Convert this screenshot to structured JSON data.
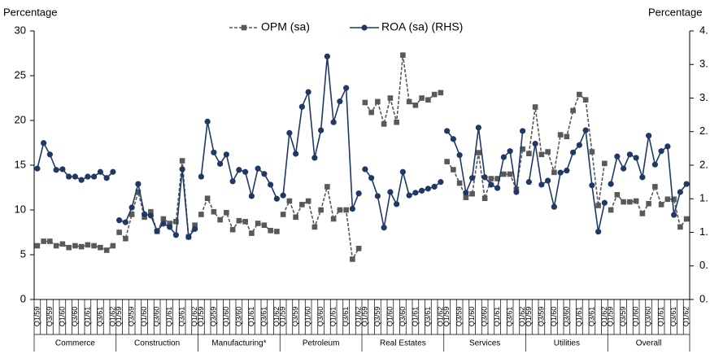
{
  "chart_data": {
    "type": "line",
    "y_label": "Percentage",
    "y2_label": "Percentage",
    "group_labels": [
      "Commerce",
      "Construction",
      "Manufacturing*",
      "Petroleum",
      "Real Estates",
      "Services",
      "Utilities",
      "Overall"
    ],
    "categories": [
      "Q1/59",
      null,
      "Q3/59",
      null,
      "Q1/60",
      null,
      "Q3/60",
      null,
      "Q1/61",
      null,
      "Q3/61",
      null,
      "Q1/62",
      "Q1/59",
      null,
      "Q3/59",
      null,
      "Q1/60",
      null,
      "Q3/60",
      null,
      "Q1/61",
      null,
      "Q3/61",
      null,
      "Q1/62",
      "Q1/59",
      null,
      "Q3/59",
      null,
      "Q1/60",
      null,
      "Q3/60",
      null,
      "Q1/61",
      null,
      "Q3/61",
      null,
      "Q1/62",
      "Q1/59",
      null,
      "Q3/59",
      null,
      "Q1/60",
      null,
      "Q3/60",
      null,
      "Q1/61",
      null,
      "Q3/61",
      null,
      "Q1/62",
      "Q1/59",
      null,
      "Q3/59",
      null,
      "Q1/60",
      null,
      "Q3/60",
      null,
      "Q1/61",
      null,
      "Q3/61",
      null,
      "Q1/62",
      "Q1/59",
      null,
      "Q3/59",
      null,
      "Q1/60",
      null,
      "Q3/60",
      null,
      "Q1/61",
      null,
      "Q3/61",
      null,
      "Q1/62",
      "Q1/59",
      null,
      "Q3/59",
      null,
      "Q1/60",
      null,
      "Q3/60",
      null,
      "Q1/61",
      null,
      "Q3/61",
      null,
      "Q1/62",
      "Q1/59",
      null,
      "Q3/59",
      null,
      "Q1/60",
      null,
      "Q3/60",
      null,
      "Q1/61",
      null,
      "Q3/61",
      null,
      "Q1/62"
    ],
    "series": [
      {
        "name": "OPM (sa)",
        "color": "#595959",
        "values": [
          6.0,
          6.5,
          6.5,
          6.0,
          6.2,
          5.8,
          6.0,
          5.9,
          6.1,
          6.0,
          5.8,
          5.5,
          6.0,
          7.5,
          6.8,
          9.5,
          12.0,
          9.2,
          9.8,
          7.6,
          9.0,
          8.5,
          8.7,
          15.5,
          7.0,
          8.3,
          9.5,
          11.3,
          9.8,
          8.9,
          9.7,
          7.8,
          8.8,
          8.7,
          7.4,
          8.5,
          8.3,
          7.7,
          7.6,
          9.5,
          11.0,
          9.2,
          10.6,
          11.0,
          8.1,
          10.0,
          12.6,
          9.0,
          10.0,
          10.0,
          4.5,
          5.7,
          22.0,
          20.9,
          22.1,
          19.6,
          22.5,
          19.8,
          27.3,
          22.1,
          21.7,
          22.5,
          22.3,
          22.9,
          23.1,
          15.4,
          14.5,
          13.0,
          11.4,
          11.8,
          16.4,
          11.3,
          13.5,
          13.5,
          14.0,
          14.0,
          12.3,
          16.8,
          16.3,
          21.5,
          16.2,
          16.5,
          14.2,
          18.4,
          18.2,
          21.1,
          22.9,
          22.3,
          16.5,
          10.5,
          15.2,
          10.0,
          11.7,
          10.9,
          10.9,
          11.0,
          9.6,
          10.7,
          12.6,
          10.6,
          11.2,
          11.2,
          8.1,
          9.0
        ]
      },
      {
        "name": "ROA (sa) (RHS)",
        "color": "#1f3864",
        "axis": "y2",
        "values": [
          1.95,
          2.33,
          2.16,
          1.93,
          1.94,
          1.83,
          1.83,
          1.78,
          1.83,
          1.83,
          1.9,
          1.81,
          1.9,
          1.18,
          1.15,
          1.37,
          1.72,
          1.27,
          1.25,
          1.02,
          1.13,
          1.08,
          0.96,
          1.94,
          0.93,
          1.05,
          1.83,
          2.65,
          2.19,
          2.02,
          2.16,
          1.76,
          1.93,
          1.9,
          1.54,
          1.95,
          1.87,
          1.71,
          1.5,
          1.55,
          2.48,
          2.17,
          2.87,
          3.09,
          2.11,
          2.52,
          3.62,
          2.64,
          2.95,
          3.15,
          1.35,
          1.58,
          1.94,
          1.81,
          1.54,
          1.07,
          1.6,
          1.42,
          1.9,
          1.55,
          1.59,
          1.62,
          1.65,
          1.68,
          1.75,
          2.51,
          2.39,
          2.15,
          1.59,
          1.81,
          2.56,
          1.82,
          1.71,
          1.66,
          2.12,
          2.21,
          1.6,
          2.51,
          1.75,
          2.32,
          1.71,
          1.77,
          1.38,
          1.89,
          1.92,
          2.19,
          2.3,
          2.52,
          1.7,
          1.01,
          1.44,
          1.72,
          2.13,
          1.95,
          2.16,
          2.11,
          1.82,
          2.44,
          2.01,
          2.21,
          2.28,
          1.26,
          1.6,
          1.72
        ]
      }
    ],
    "ylim": [
      0,
      30
    ],
    "yticks": [
      0,
      5,
      10,
      15,
      20,
      25,
      30
    ],
    "y2lim": [
      0,
      4
    ],
    "y2ticks": [
      {
        "value": 0,
        "label": "0."
      },
      {
        "value": 0.5,
        "label": "0."
      },
      {
        "value": 1,
        "label": "1."
      },
      {
        "value": 1.5,
        "label": "1."
      },
      {
        "value": 2,
        "label": "2."
      },
      {
        "value": 2.5,
        "label": "2."
      },
      {
        "value": 3,
        "label": "3."
      },
      {
        "value": 3.5,
        "label": "3."
      },
      {
        "value": 4,
        "label": "4."
      }
    ],
    "grid": false,
    "legend": "top"
  }
}
